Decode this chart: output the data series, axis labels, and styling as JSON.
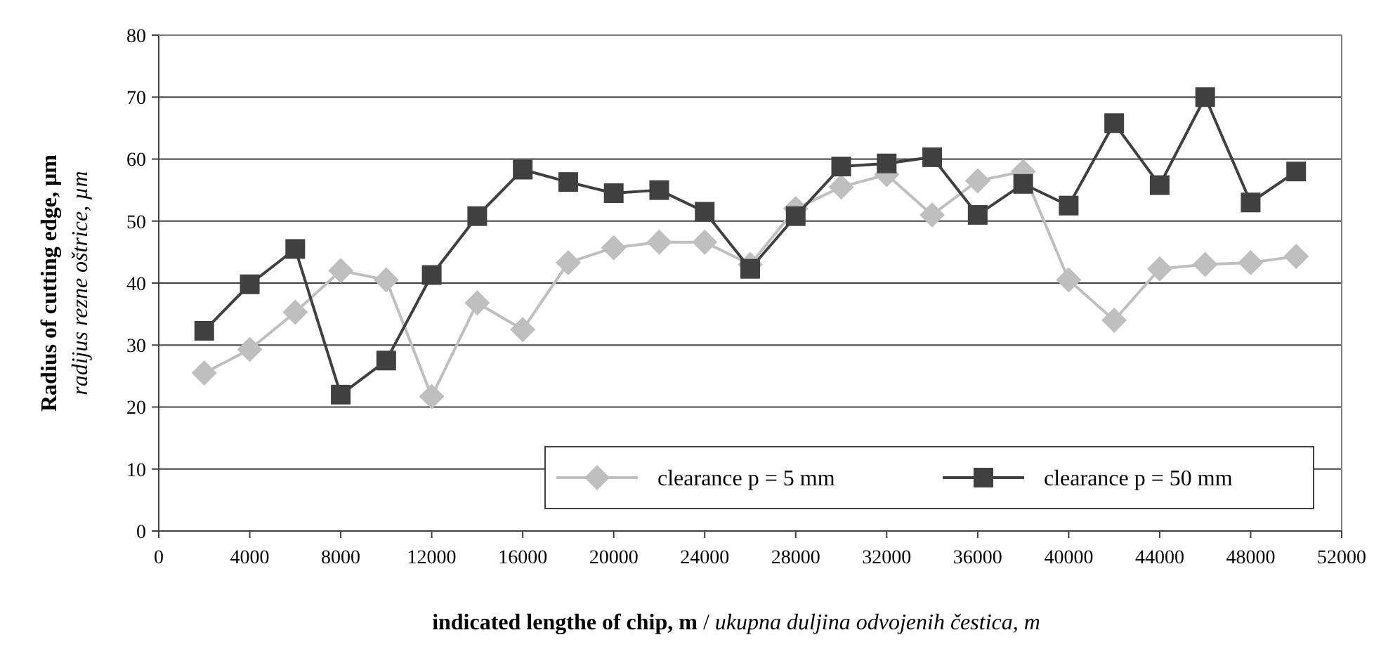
{
  "chart_data": {
    "type": "line",
    "xlabel": "indicated lengthe of chip, m / ukupna duljina odvojenih čestica, m",
    "ylabel": "Radius of cutting edge, µm\nradijus rezne oštrice, µm",
    "x": [
      2000,
      4000,
      6000,
      8000,
      10000,
      12000,
      14000,
      16000,
      18000,
      20000,
      22000,
      24000,
      26000,
      28000,
      30000,
      32000,
      34000,
      36000,
      38000,
      40000,
      42000,
      44000,
      46000,
      48000,
      50000
    ],
    "series": [
      {
        "name": "clearance p = 5 mm",
        "color": "#bfbfbf",
        "marker": "diamond",
        "values": [
          25.5,
          29.3,
          35.3,
          42,
          40.5,
          21.7,
          36.8,
          32.5,
          43.3,
          45.7,
          46.6,
          46.6,
          43,
          52,
          55.5,
          57.5,
          51,
          56.5,
          58,
          40.5,
          34,
          42.3,
          43,
          43.3,
          44.3
        ]
      },
      {
        "name": "clearance p = 50 mm",
        "color": "#404040",
        "marker": "square",
        "values": [
          32.3,
          39.8,
          45.5,
          22,
          27.5,
          41.3,
          50.8,
          58.3,
          56.3,
          54.5,
          55,
          51.5,
          42.3,
          50.8,
          58.8,
          59.3,
          60.3,
          51,
          56,
          52.5,
          65.8,
          55.8,
          70,
          53,
          58
        ]
      }
    ],
    "xlim": [
      0,
      52000
    ],
    "xticks": [
      0,
      4000,
      8000,
      12000,
      16000,
      20000,
      24000,
      28000,
      32000,
      36000,
      40000,
      44000,
      48000,
      52000
    ],
    "ylim": [
      0,
      80
    ],
    "yticks": [
      0,
      10,
      20,
      30,
      40,
      50,
      60,
      70,
      80
    ],
    "grid": "y",
    "legend": "bottom right",
    "line_style": "solid"
  }
}
